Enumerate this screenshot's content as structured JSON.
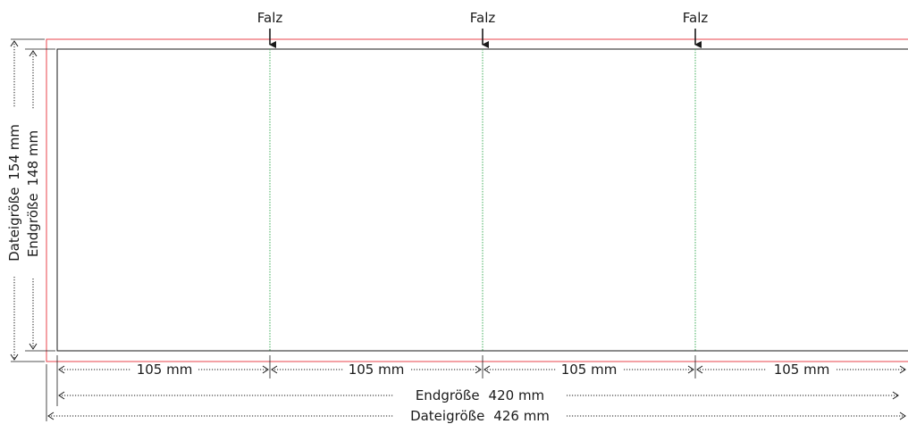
{
  "fold": {
    "label": "Falz"
  },
  "panels": [
    {
      "width_label": "105 mm"
    },
    {
      "width_label": "105 mm"
    },
    {
      "width_label": "105 mm"
    },
    {
      "width_label": "105 mm"
    }
  ],
  "end_size_width": {
    "label": "Endgröße",
    "value": "420 mm"
  },
  "file_size_width": {
    "label": "Dateigröße",
    "value": "426 mm"
  },
  "end_size_height": {
    "label": "Endgröße",
    "value": "148 mm"
  },
  "file_size_height": {
    "label": "Dateigröße",
    "value": "154 mm"
  },
  "colors": {
    "trim": "#1a1a1a",
    "bleed": "#e8434b",
    "fold_line": "#3fae5a"
  }
}
